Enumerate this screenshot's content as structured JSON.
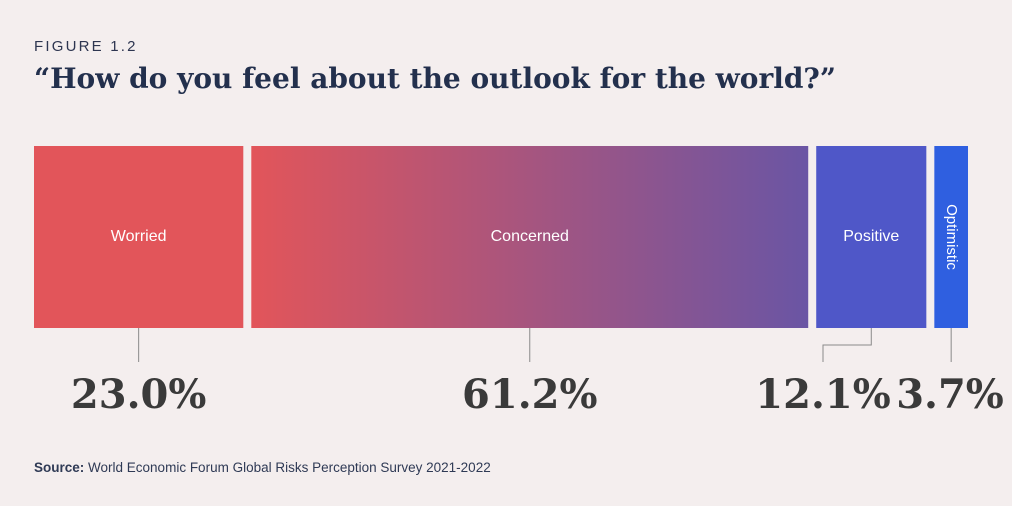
{
  "figure_label": "FIGURE 1.2",
  "title": "“How do you feel about the outlook for the world?”",
  "source": {
    "label": "Source:",
    "text": "World Economic Forum Global Risks Perception Survey 2021-2022"
  },
  "chart_data": {
    "type": "bar",
    "orientation": "horizontal-stacked",
    "unit": "%",
    "categories": [
      "Worried",
      "Concerned",
      "Positive",
      "Optimistic"
    ],
    "values": [
      23.0,
      61.2,
      12.1,
      3.7
    ],
    "value_labels": [
      "23.0%",
      "61.2%",
      "12.1%",
      "3.7%"
    ],
    "colors": [
      "#e2555a",
      "#b04a78",
      "#4f57c8",
      "#2f5fe0"
    ],
    "gradient": {
      "Concerned": [
        "#e2555a",
        "#6a55a4"
      ]
    },
    "vertical_label": [
      "Optimistic"
    ]
  }
}
